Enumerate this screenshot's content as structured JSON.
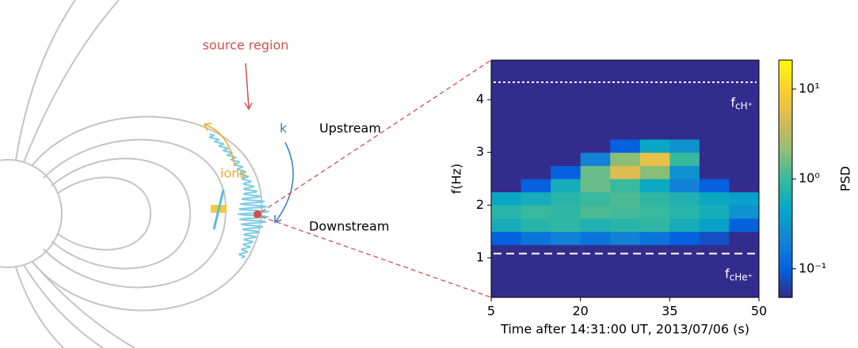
{
  "schematic": {
    "source_label": "source region",
    "k_label": "k",
    "ions_label": "ions",
    "upstream_label": "Upstream",
    "downstream_label": "Downstream"
  },
  "chart_data": {
    "type": "heatmap",
    "xlabel": "Time after 14:31:00 UT, 2013/07/06 (s)",
    "ylabel": "f(Hz)",
    "colorbar_label": "PSD",
    "xlim": [
      5,
      50
    ],
    "xticks": [
      5,
      20,
      35,
      50
    ],
    "ylim": [
      0.25,
      4.75
    ],
    "yticks": [
      1,
      2,
      3,
      4
    ],
    "clim": [
      0.048,
      21
    ],
    "clog": true,
    "cticks": [
      {
        "value": 0.1,
        "label": "10⁻¹"
      },
      {
        "value": 1,
        "label": "10⁰"
      },
      {
        "value": 10,
        "label": "10¹"
      }
    ],
    "colormap": [
      "#352a87",
      "#0363e1",
      "#1485d4",
      "#06a7c6",
      "#38b99e",
      "#92bf73",
      "#d9ba56",
      "#fcce2e",
      "#f9fb0e"
    ],
    "xbins": [
      5,
      10,
      15,
      20,
      25,
      30,
      35,
      40,
      45,
      50
    ],
    "ybins": [
      0.25,
      0.5,
      0.75,
      1.0,
      1.25,
      1.5,
      1.75,
      2.0,
      2.25,
      2.5,
      2.75,
      3.0,
      3.25,
      3.5,
      3.75,
      4.0,
      4.25,
      4.5,
      4.75
    ],
    "z": [
      [
        0.05,
        0.05,
        0.05,
        0.05,
        0.05,
        0.05,
        0.05,
        0.05,
        0.05
      ],
      [
        0.05,
        0.05,
        0.05,
        0.05,
        0.05,
        0.05,
        0.05,
        0.05,
        0.05
      ],
      [
        0.05,
        0.05,
        0.05,
        0.05,
        0.05,
        0.05,
        0.05,
        0.05,
        0.05
      ],
      [
        0.05,
        0.05,
        0.05,
        0.05,
        0.05,
        0.05,
        0.05,
        0.05,
        0.05
      ],
      [
        0.1,
        0.15,
        0.2,
        0.15,
        0.2,
        0.15,
        0.1,
        0.08,
        0.05
      ],
      [
        0.6,
        0.8,
        0.9,
        0.7,
        0.8,
        0.9,
        0.6,
        0.4,
        0.1
      ],
      [
        0.8,
        1,
        0.9,
        1.2,
        1.1,
        1,
        0.8,
        0.6,
        0.3
      ],
      [
        0.5,
        0.6,
        0.8,
        1,
        1.2,
        0.9,
        0.7,
        0.5,
        0.4
      ],
      [
        0.05,
        0.1,
        0.6,
        1.5,
        1,
        0.5,
        0.2,
        0.1,
        0.05
      ],
      [
        0.05,
        0.05,
        0.1,
        1.5,
        5,
        2,
        0.3,
        0.05,
        0.05
      ],
      [
        0.05,
        0.05,
        0.05,
        0.2,
        2,
        6,
        1,
        0.05,
        0.05
      ],
      [
        0.05,
        0.05,
        0.05,
        0.05,
        0.1,
        0.5,
        0.3,
        0.05,
        0.05
      ],
      [
        0.05,
        0.05,
        0.05,
        0.05,
        0.05,
        0.05,
        0.05,
        0.05,
        0.05
      ],
      [
        0.05,
        0.05,
        0.05,
        0.05,
        0.05,
        0.05,
        0.05,
        0.05,
        0.05
      ],
      [
        0.05,
        0.05,
        0.05,
        0.05,
        0.05,
        0.05,
        0.05,
        0.05,
        0.05
      ],
      [
        0.05,
        0.05,
        0.05,
        0.05,
        0.05,
        0.05,
        0.05,
        0.05,
        0.05
      ],
      [
        0.05,
        0.05,
        0.05,
        0.05,
        0.05,
        0.05,
        0.05,
        0.05,
        0.05
      ],
      [
        0.05,
        0.05,
        0.05,
        0.05,
        0.05,
        0.05,
        0.05,
        0.05,
        0.05
      ]
    ],
    "annotations": [
      {
        "text": "f",
        "subscript": "cH⁺",
        "value": 4.33,
        "dash": "3,3"
      },
      {
        "text": "f",
        "subscript": "cHe⁺",
        "value": 1.08,
        "dash": "10,6"
      }
    ]
  }
}
